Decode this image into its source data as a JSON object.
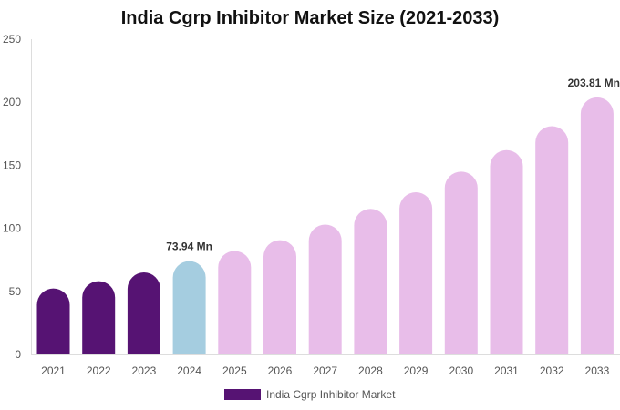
{
  "chart_data": {
    "type": "bar",
    "title": "India Cgrp Inhibitor Market Size (2021-2033)",
    "xlabel": "",
    "ylabel": "",
    "categories": [
      "2021",
      "2022",
      "2023",
      "2024",
      "2025",
      "2026",
      "2027",
      "2028",
      "2029",
      "2030",
      "2031",
      "2032",
      "2033"
    ],
    "series": [
      {
        "name": "India Cgrp Inhibitor Market",
        "values": [
          52.3,
          58.1,
          65.0,
          73.94,
          82.0,
          90.6,
          103.0,
          115.4,
          128.6,
          145.0,
          162.0,
          181.0,
          203.81
        ]
      }
    ],
    "bar_colors": [
      "#561373",
      "#561373",
      "#561373",
      "#a5cde0",
      "#e8bde9",
      "#e8bde9",
      "#e8bde9",
      "#e8bde9",
      "#e8bde9",
      "#e8bde9",
      "#e8bde9",
      "#e8bde9",
      "#e8bde9"
    ],
    "legend_color": "#561373",
    "ylim": [
      0,
      250
    ],
    "yticks": [
      0,
      50,
      100,
      150,
      200,
      250
    ],
    "grid": false,
    "legend_position": "bottom",
    "data_labels": [
      {
        "category": "2024",
        "text": "73.94 Mn"
      },
      {
        "category": "2033",
        "text": "203.81 Mn"
      }
    ]
  }
}
